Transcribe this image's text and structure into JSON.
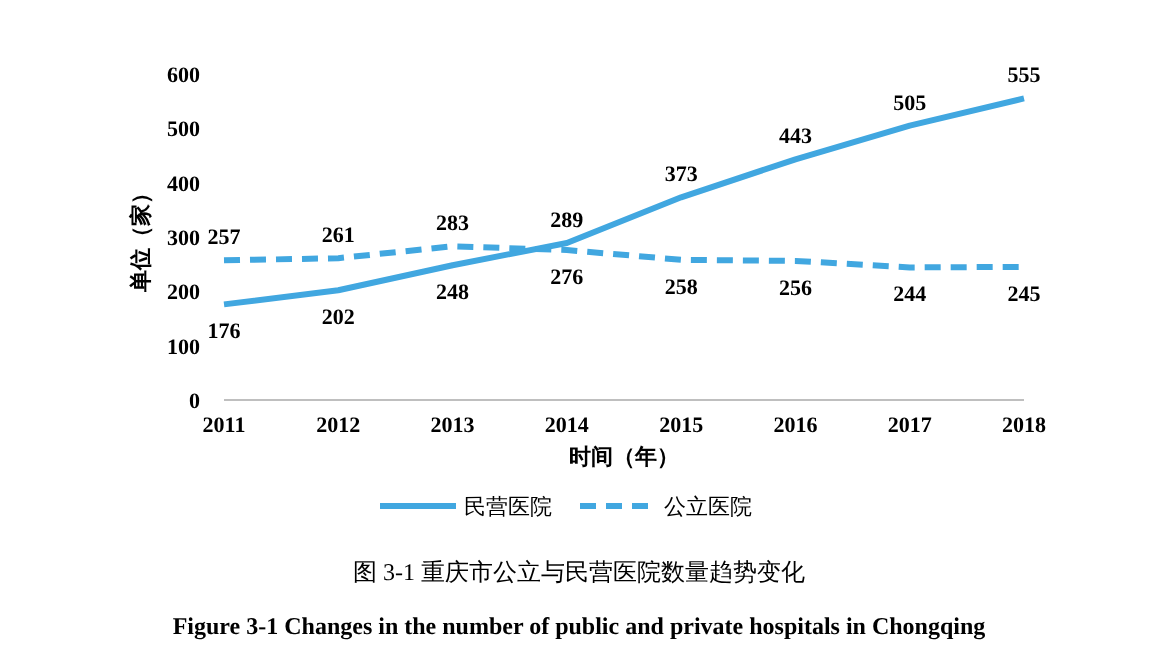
{
  "chart_data": {
    "type": "line",
    "x": [
      2011,
      2012,
      2013,
      2014,
      2015,
      2016,
      2017,
      2018
    ],
    "series": [
      {
        "name": "民营医院",
        "color": "#41a7e0",
        "line_style": "solid",
        "values": [
          176,
          202,
          248,
          289,
          373,
          443,
          505,
          555
        ]
      },
      {
        "name": "公立医院",
        "color": "#41a7e0",
        "line_style": "dashed",
        "values": [
          257,
          261,
          283,
          276,
          258,
          256,
          244,
          245
        ]
      }
    ],
    "xlim": [
      2011,
      2018
    ],
    "xticks": [
      2011,
      2012,
      2013,
      2014,
      2015,
      2016,
      2017,
      2018
    ],
    "ylim": [
      0,
      600
    ],
    "yticks": [
      0,
      100,
      200,
      300,
      400,
      500,
      600
    ],
    "xlabel": "时间（年）",
    "ylabel": "单位（家）",
    "legend": "bottom",
    "data_labels": true,
    "annotations": [
      "图 3-1    重庆市公立与民营医院数量趋势变化",
      "Figure 3-1 Changes in the number of public and private hospitals in Chongqing"
    ]
  }
}
